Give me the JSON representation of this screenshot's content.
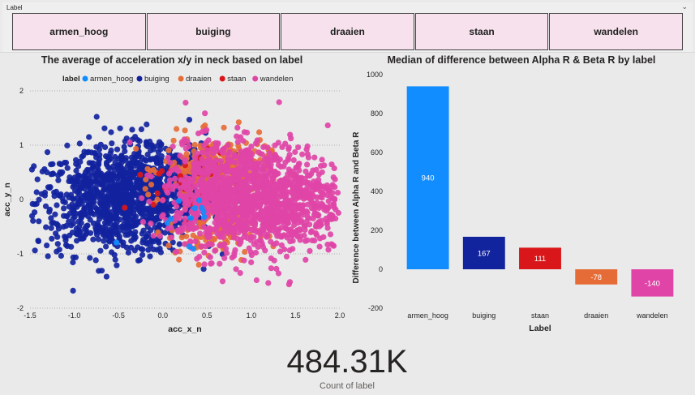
{
  "slicer": {
    "title": "Label",
    "items": [
      "armen_hoog",
      "buiging",
      "draaien",
      "staan",
      "wandelen"
    ]
  },
  "colors": {
    "armen_hoog": "#118dff",
    "buiging": "#12239e",
    "draaien": "#e66c37",
    "staan": "#d9171a",
    "wandelen": "#e044a7"
  },
  "card": {
    "value": "484.31K",
    "label": "Count of label"
  },
  "chart_data": [
    {
      "type": "scatter",
      "title": "The average of acceleration x/y in neck based on label",
      "xlabel": "acc_x_n",
      "ylabel": "acc_y_n",
      "xlim": [
        -1.5,
        2.0
      ],
      "ylim": [
        -2,
        2
      ],
      "x_ticks": [
        "-1.5",
        "-1.0",
        "-0.5",
        "0.0",
        "0.5",
        "1.0",
        "1.5",
        "2.0"
      ],
      "y_ticks": [
        "2",
        "1",
        "0",
        "-1",
        "-2"
      ],
      "grid": "horizontal dotted",
      "legend": {
        "title": "label",
        "placement": "top-left",
        "entries": [
          "armen_hoog",
          "buiging",
          "draaien",
          "staan",
          "wandelen"
        ]
      },
      "series": [
        {
          "name": "buiging",
          "clusters": [
            {
              "cx": -0.55,
              "cy": -0.05,
              "sx": 0.45,
              "sy": 0.48,
              "n": 900
            },
            {
              "cx": -0.1,
              "cy": 0.3,
              "sx": 0.35,
              "sy": 0.45,
              "n": 350
            }
          ]
        },
        {
          "name": "draaien",
          "clusters": [
            {
              "cx": 0.6,
              "cy": 0.55,
              "sx": 0.3,
              "sy": 0.3,
              "n": 260
            },
            {
              "cx": 0.55,
              "cy": -0.55,
              "sx": 0.25,
              "sy": 0.3,
              "n": 120
            }
          ]
        },
        {
          "name": "staan",
          "clusters": [
            {
              "cx": 0.4,
              "cy": 0.3,
              "sx": 0.25,
              "sy": 0.3,
              "n": 60
            }
          ]
        },
        {
          "name": "wandelen",
          "clusters": [
            {
              "cx": 1.15,
              "cy": 0.0,
              "sx": 0.45,
              "sy": 0.5,
              "n": 1100
            },
            {
              "cx": 0.6,
              "cy": 0.1,
              "sx": 0.3,
              "sy": 0.45,
              "n": 350
            }
          ]
        },
        {
          "name": "armen_hoog",
          "clusters": [
            {
              "cx": 0.2,
              "cy": -0.2,
              "sx": 0.3,
              "sy": 0.3,
              "n": 12
            }
          ]
        }
      ]
    },
    {
      "type": "bar",
      "title": "Median of difference between Alpha R & Beta R by label",
      "xlabel": "Label",
      "ylabel": "Difference between Alpha R and Beta R",
      "ylim": [
        -200,
        1000
      ],
      "y_ticks": [
        "1000",
        "800",
        "600",
        "400",
        "200",
        "0",
        "-200"
      ],
      "categories": [
        "armen_hoog",
        "buiging",
        "staan",
        "draaien",
        "wandelen"
      ],
      "values": [
        940,
        167,
        111,
        -78,
        -140
      ],
      "value_labels": [
        "940",
        "167",
        "111",
        "-78",
        "-140"
      ]
    }
  ]
}
